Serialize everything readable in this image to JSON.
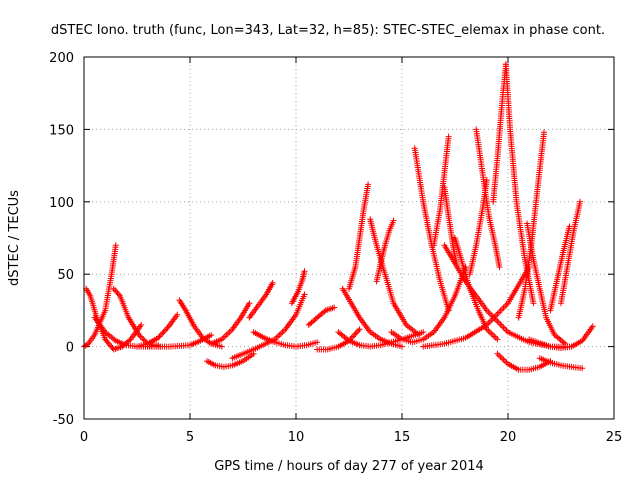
{
  "chart_data": {
    "type": "scatter",
    "title": "dSTEC Iono. truth (func, Lon=343, Lat=32, h=85): STEC-STEC_elemax in phase cont.",
    "xlabel": "GPS time / hours of day 277 of year 2014",
    "ylabel": "dSTEC  / TECUs",
    "xlim": [
      0,
      25
    ],
    "ylim": [
      -50,
      200
    ],
    "xticks": [
      0,
      5,
      10,
      15,
      20,
      25
    ],
    "yticks": [
      -50,
      0,
      50,
      100,
      150,
      200
    ],
    "grid": true,
    "marker": "+",
    "color": "#ff0000",
    "arcs": [
      {
        "x": [
          0.0,
          0.2,
          0.5,
          1.0,
          1.3,
          1.5
        ],
        "y": [
          0,
          2,
          8,
          25,
          50,
          70
        ]
      },
      {
        "x": [
          0.1,
          0.3,
          0.6,
          1.0,
          1.4,
          1.8,
          2.2,
          2.7
        ],
        "y": [
          40,
          35,
          20,
          5,
          -2,
          0,
          5,
          15
        ]
      },
      {
        "x": [
          1.4,
          1.7,
          2.1,
          2.6,
          3.0,
          3.6
        ],
        "y": [
          40,
          35,
          20,
          8,
          2,
          0
        ]
      },
      {
        "x": [
          0.5,
          1.0,
          1.5,
          2.0,
          2.5,
          3.0,
          3.5
        ],
        "y": [
          20,
          10,
          4,
          1,
          0,
          0,
          1
        ]
      },
      {
        "x": [
          2.5,
          3.0,
          3.5,
          4.0,
          4.4
        ],
        "y": [
          0,
          2,
          6,
          14,
          22
        ]
      },
      {
        "x": [
          4.5,
          4.8,
          5.2,
          5.6,
          6.0,
          6.5
        ],
        "y": [
          32,
          25,
          14,
          6,
          2,
          0
        ]
      },
      {
        "x": [
          3.0,
          4.0,
          5.0,
          5.5,
          6.0
        ],
        "y": [
          0,
          0,
          1,
          4,
          8
        ]
      },
      {
        "x": [
          5.8,
          6.2,
          6.6,
          7.0,
          7.5,
          8.0
        ],
        "y": [
          -10,
          -13,
          -14,
          -13,
          -10,
          -5
        ]
      },
      {
        "x": [
          6.0,
          6.5,
          7.0,
          7.4,
          7.8
        ],
        "y": [
          2,
          5,
          12,
          20,
          30
        ]
      },
      {
        "x": [
          7.8,
          8.2,
          8.6,
          8.9
        ],
        "y": [
          20,
          28,
          36,
          44
        ]
      },
      {
        "x": [
          8.0,
          8.5,
          9.0,
          9.5,
          10.0,
          10.5,
          11.0
        ],
        "y": [
          10,
          6,
          3,
          1,
          0,
          1,
          3
        ]
      },
      {
        "x": [
          7.0,
          8.0,
          9.0,
          9.5,
          10.0,
          10.4
        ],
        "y": [
          -8,
          -2,
          5,
          12,
          22,
          36
        ]
      },
      {
        "x": [
          9.8,
          10.1,
          10.3,
          10.4
        ],
        "y": [
          30,
          38,
          46,
          52
        ]
      },
      {
        "x": [
          10.6,
          11.0,
          11.4,
          11.8
        ],
        "y": [
          15,
          20,
          25,
          27
        ]
      },
      {
        "x": [
          11.0,
          11.5,
          12.0,
          12.5,
          13.0
        ],
        "y": [
          -2,
          -2,
          0,
          4,
          12
        ]
      },
      {
        "x": [
          12.5,
          12.8,
          13.0,
          13.2,
          13.4
        ],
        "y": [
          40,
          55,
          75,
          95,
          112
        ]
      },
      {
        "x": [
          12.2,
          12.6,
          13.0,
          13.5,
          14.0,
          14.5,
          15.0
        ],
        "y": [
          40,
          30,
          20,
          10,
          5,
          2,
          0
        ]
      },
      {
        "x": [
          13.5,
          13.8,
          14.2,
          14.6,
          15.2,
          15.8
        ],
        "y": [
          88,
          70,
          50,
          30,
          15,
          8
        ]
      },
      {
        "x": [
          13.8,
          14.0,
          14.2,
          14.4,
          14.6
        ],
        "y": [
          45,
          58,
          70,
          80,
          87
        ]
      },
      {
        "x": [
          12.0,
          12.5,
          13.0,
          13.5,
          14.0,
          14.5,
          15.0,
          16.0
        ],
        "y": [
          10,
          4,
          1,
          0,
          1,
          3,
          5,
          10
        ]
      },
      {
        "x": [
          15.6,
          16.0,
          16.4,
          16.8,
          17.2
        ],
        "y": [
          137,
          100,
          70,
          45,
          25
        ]
      },
      {
        "x": [
          16.5,
          16.8,
          17.0,
          17.2
        ],
        "y": [
          70,
          95,
          120,
          145
        ]
      },
      {
        "x": [
          17.0,
          17.2,
          17.4,
          17.6
        ],
        "y": [
          110,
          90,
          70,
          55
        ]
      },
      {
        "x": [
          14.5,
          15.0,
          15.5,
          16.0,
          16.5,
          17.0,
          17.5,
          18.0
        ],
        "y": [
          10,
          5,
          3,
          5,
          10,
          20,
          35,
          55
        ]
      },
      {
        "x": [
          17.5,
          17.8,
          18.2,
          18.6,
          19.0,
          19.5
        ],
        "y": [
          75,
          60,
          40,
          25,
          12,
          5
        ]
      },
      {
        "x": [
          18.2,
          18.5,
          18.8,
          19.0
        ],
        "y": [
          50,
          70,
          95,
          115
        ]
      },
      {
        "x": [
          18.5,
          18.8,
          19.1,
          19.4,
          19.6
        ],
        "y": [
          150,
          120,
          90,
          70,
          55
        ]
      },
      {
        "x": [
          19.3,
          19.5,
          19.7,
          19.9
        ],
        "y": [
          100,
          130,
          165,
          195
        ]
      },
      {
        "x": [
          19.9,
          20.1,
          20.4,
          20.8,
          21.2
        ],
        "y": [
          195,
          150,
          100,
          60,
          30
        ]
      },
      {
        "x": [
          19.5,
          20.0,
          20.5,
          21.0,
          21.5,
          22.0
        ],
        "y": [
          -5,
          -12,
          -16,
          -16,
          -14,
          -10
        ]
      },
      {
        "x": [
          20.5,
          20.8,
          21.1,
          21.4,
          21.7
        ],
        "y": [
          20,
          40,
          70,
          110,
          148
        ]
      },
      {
        "x": [
          20.9,
          21.2,
          21.5,
          21.8,
          22.2,
          22.7
        ],
        "y": [
          85,
          60,
          40,
          20,
          8,
          2
        ]
      },
      {
        "x": [
          21.5,
          22.0,
          22.5,
          23.0,
          23.5
        ],
        "y": [
          -8,
          -11,
          -13,
          -14,
          -15
        ]
      },
      {
        "x": [
          22.0,
          22.3,
          22.6,
          22.9
        ],
        "y": [
          25,
          45,
          65,
          83
        ]
      },
      {
        "x": [
          22.5,
          22.8,
          23.1,
          23.4
        ],
        "y": [
          30,
          55,
          80,
          100
        ]
      },
      {
        "x": [
          21.0,
          22.0,
          22.5,
          23.0,
          23.5,
          24.0
        ],
        "y": [
          5,
          0,
          -1,
          0,
          4,
          14
        ]
      },
      {
        "x": [
          17.0,
          18.0,
          19.0,
          20.0,
          21.0,
          22.0,
          23.0
        ],
        "y": [
          70,
          45,
          25,
          10,
          3,
          0,
          0
        ]
      },
      {
        "x": [
          16.0,
          17.0,
          18.0,
          19.0,
          20.0,
          21.0
        ],
        "y": [
          0,
          2,
          6,
          15,
          30,
          55
        ]
      }
    ]
  }
}
